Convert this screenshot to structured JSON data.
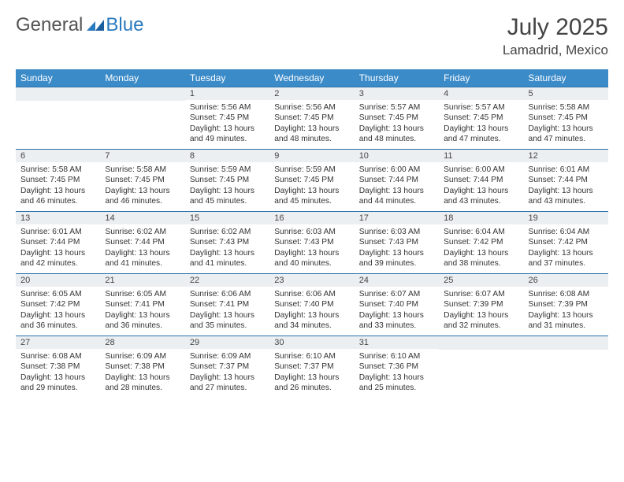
{
  "brand": {
    "part1": "General",
    "part2": "Blue"
  },
  "title": {
    "month": "July 2025",
    "location": "Lamadrid, Mexico"
  },
  "colors": {
    "header_bg": "#3b8bc9",
    "header_text": "#ffffff",
    "daynum_bg": "#eceff1",
    "cell_border_top": "#2a6fa8",
    "brand_accent": "#2a7ac0",
    "text": "#333333"
  },
  "weekdays": [
    "Sunday",
    "Monday",
    "Tuesday",
    "Wednesday",
    "Thursday",
    "Friday",
    "Saturday"
  ],
  "first_weekday_index": 2,
  "days_in_month": 31,
  "days": {
    "1": {
      "sunrise": "5:56 AM",
      "sunset": "7:45 PM",
      "daylight": "13 hours and 49 minutes."
    },
    "2": {
      "sunrise": "5:56 AM",
      "sunset": "7:45 PM",
      "daylight": "13 hours and 48 minutes."
    },
    "3": {
      "sunrise": "5:57 AM",
      "sunset": "7:45 PM",
      "daylight": "13 hours and 48 minutes."
    },
    "4": {
      "sunrise": "5:57 AM",
      "sunset": "7:45 PM",
      "daylight": "13 hours and 47 minutes."
    },
    "5": {
      "sunrise": "5:58 AM",
      "sunset": "7:45 PM",
      "daylight": "13 hours and 47 minutes."
    },
    "6": {
      "sunrise": "5:58 AM",
      "sunset": "7:45 PM",
      "daylight": "13 hours and 46 minutes."
    },
    "7": {
      "sunrise": "5:58 AM",
      "sunset": "7:45 PM",
      "daylight": "13 hours and 46 minutes."
    },
    "8": {
      "sunrise": "5:59 AM",
      "sunset": "7:45 PM",
      "daylight": "13 hours and 45 minutes."
    },
    "9": {
      "sunrise": "5:59 AM",
      "sunset": "7:45 PM",
      "daylight": "13 hours and 45 minutes."
    },
    "10": {
      "sunrise": "6:00 AM",
      "sunset": "7:44 PM",
      "daylight": "13 hours and 44 minutes."
    },
    "11": {
      "sunrise": "6:00 AM",
      "sunset": "7:44 PM",
      "daylight": "13 hours and 43 minutes."
    },
    "12": {
      "sunrise": "6:01 AM",
      "sunset": "7:44 PM",
      "daylight": "13 hours and 43 minutes."
    },
    "13": {
      "sunrise": "6:01 AM",
      "sunset": "7:44 PM",
      "daylight": "13 hours and 42 minutes."
    },
    "14": {
      "sunrise": "6:02 AM",
      "sunset": "7:44 PM",
      "daylight": "13 hours and 41 minutes."
    },
    "15": {
      "sunrise": "6:02 AM",
      "sunset": "7:43 PM",
      "daylight": "13 hours and 41 minutes."
    },
    "16": {
      "sunrise": "6:03 AM",
      "sunset": "7:43 PM",
      "daylight": "13 hours and 40 minutes."
    },
    "17": {
      "sunrise": "6:03 AM",
      "sunset": "7:43 PM",
      "daylight": "13 hours and 39 minutes."
    },
    "18": {
      "sunrise": "6:04 AM",
      "sunset": "7:42 PM",
      "daylight": "13 hours and 38 minutes."
    },
    "19": {
      "sunrise": "6:04 AM",
      "sunset": "7:42 PM",
      "daylight": "13 hours and 37 minutes."
    },
    "20": {
      "sunrise": "6:05 AM",
      "sunset": "7:42 PM",
      "daylight": "13 hours and 36 minutes."
    },
    "21": {
      "sunrise": "6:05 AM",
      "sunset": "7:41 PM",
      "daylight": "13 hours and 36 minutes."
    },
    "22": {
      "sunrise": "6:06 AM",
      "sunset": "7:41 PM",
      "daylight": "13 hours and 35 minutes."
    },
    "23": {
      "sunrise": "6:06 AM",
      "sunset": "7:40 PM",
      "daylight": "13 hours and 34 minutes."
    },
    "24": {
      "sunrise": "6:07 AM",
      "sunset": "7:40 PM",
      "daylight": "13 hours and 33 minutes."
    },
    "25": {
      "sunrise": "6:07 AM",
      "sunset": "7:39 PM",
      "daylight": "13 hours and 32 minutes."
    },
    "26": {
      "sunrise": "6:08 AM",
      "sunset": "7:39 PM",
      "daylight": "13 hours and 31 minutes."
    },
    "27": {
      "sunrise": "6:08 AM",
      "sunset": "7:38 PM",
      "daylight": "13 hours and 29 minutes."
    },
    "28": {
      "sunrise": "6:09 AM",
      "sunset": "7:38 PM",
      "daylight": "13 hours and 28 minutes."
    },
    "29": {
      "sunrise": "6:09 AM",
      "sunset": "7:37 PM",
      "daylight": "13 hours and 27 minutes."
    },
    "30": {
      "sunrise": "6:10 AM",
      "sunset": "7:37 PM",
      "daylight": "13 hours and 26 minutes."
    },
    "31": {
      "sunrise": "6:10 AM",
      "sunset": "7:36 PM",
      "daylight": "13 hours and 25 minutes."
    }
  },
  "labels": {
    "sunrise_prefix": "Sunrise: ",
    "sunset_prefix": "Sunset: ",
    "daylight_prefix": "Daylight: "
  }
}
